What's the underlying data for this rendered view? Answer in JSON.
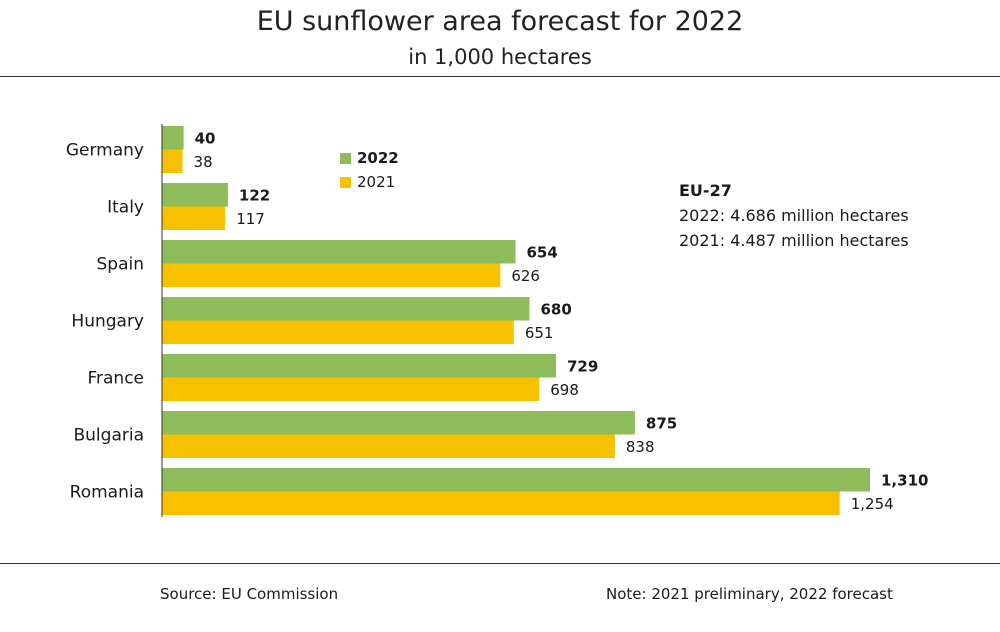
{
  "title": "EU sunflower area forecast for 2022",
  "subtitle": "in 1,000 hectares",
  "legend": {
    "series_2022": "2022",
    "series_2021": "2021"
  },
  "eu_box": {
    "heading": "EU-27",
    "line_2022": "2022: 4.686 million hectares",
    "line_2021": "2021: 4.487 million hectares"
  },
  "footer": {
    "source": "Source:  EU Commission",
    "note": "Note: 2021 preliminary, 2022 forecast"
  },
  "colors": {
    "green": "#8fbc5a",
    "yellow": "#f7c100",
    "text": "#1a1a1a",
    "rule": "#333333"
  },
  "chart_data": {
    "type": "bar",
    "orientation": "horizontal",
    "title": "EU sunflower area forecast for 2022",
    "subtitle": "in 1,000 hectares",
    "categories": [
      "Germany",
      "Italy",
      "Spain",
      "Hungary",
      "France",
      "Bulgaria",
      "Romania"
    ],
    "series": [
      {
        "name": "2022",
        "color": "#8fbc5a",
        "bold_labels": true,
        "values": [
          40,
          122,
          654,
          680,
          729,
          875,
          1310
        ],
        "labels": [
          "40",
          "122",
          "654",
          "680",
          "729",
          "875",
          "1,310"
        ]
      },
      {
        "name": "2021",
        "color": "#f7c100",
        "bold_labels": false,
        "values": [
          38,
          117,
          626,
          651,
          698,
          838,
          1254
        ],
        "labels": [
          "38",
          "117",
          "626",
          "651",
          "698",
          "838",
          "1,254"
        ]
      }
    ],
    "xlim": [
      0,
      1310
    ],
    "grid": false,
    "legend_position": "top-center"
  }
}
